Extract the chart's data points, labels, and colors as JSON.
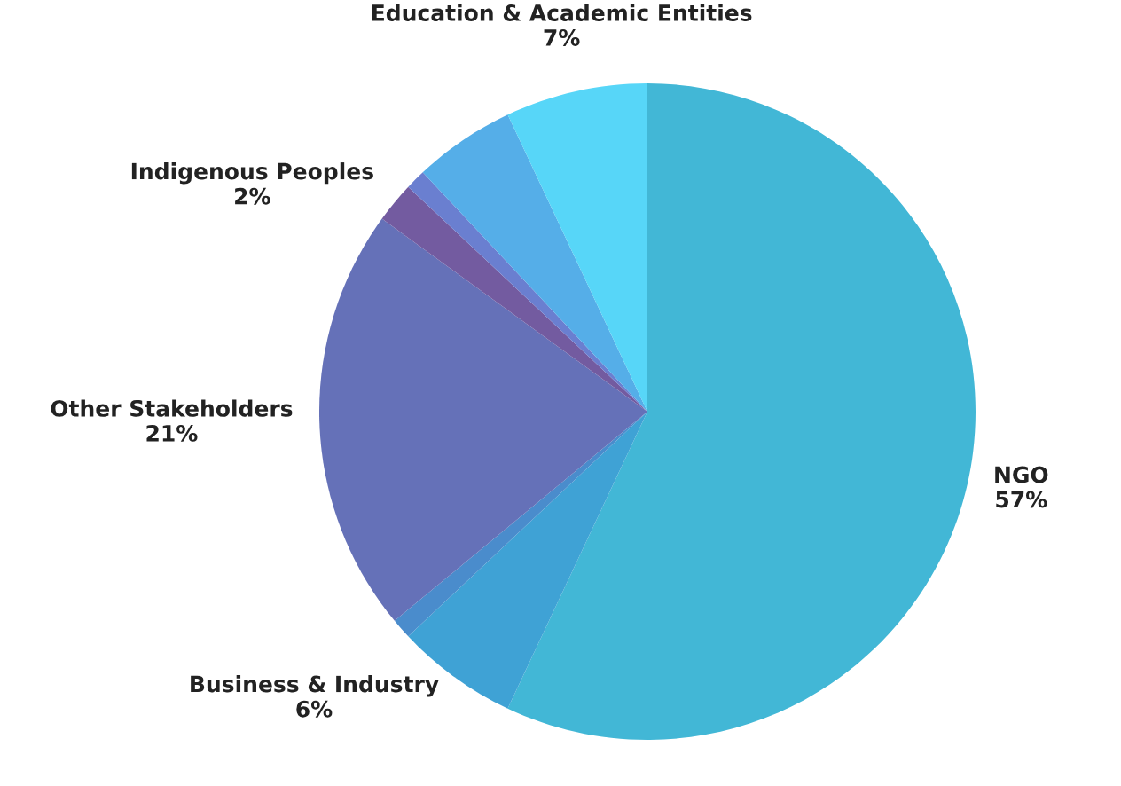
{
  "chart_data": {
    "type": "pie",
    "categories": [
      "NGO",
      "Business & Industry",
      null,
      "Other Stakeholders",
      "Indigenous Peoples",
      null,
      null,
      "Education & Academic Entities"
    ],
    "values": [
      57,
      6,
      1,
      21,
      2,
      1,
      5,
      7
    ],
    "value_labels": [
      "57%",
      "6%",
      null,
      "21%",
      "2%",
      null,
      null,
      "7%"
    ],
    "colors": [
      "#42b7d6",
      "#3fa2d5",
      "#4a8ccc",
      "#6571b8",
      "#735ba0",
      "#6a7fd0",
      "#55aee8",
      "#57d6f8"
    ]
  }
}
